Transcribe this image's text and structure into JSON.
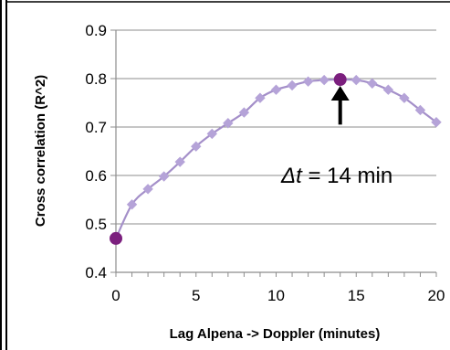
{
  "chart_data": {
    "type": "line",
    "xlabel": "Lag Alpena -> Doppler (minutes)",
    "ylabel": "Cross correlation (R^2)",
    "xlim": [
      0,
      20
    ],
    "ylim": [
      0.4,
      0.9
    ],
    "xticks": [
      0,
      5,
      10,
      15,
      20
    ],
    "yticks": [
      0.4,
      0.5,
      0.6,
      0.7,
      0.8,
      0.9
    ],
    "xtick_labels": [
      "0",
      "5",
      "10",
      "15",
      "20"
    ],
    "ytick_labels": [
      "0.4",
      "0.5",
      "0.6",
      "0.7",
      "0.8",
      "0.9"
    ],
    "grid": "horizontal",
    "colors": {
      "line": "#a48fc9",
      "marker": "#b5a3d8",
      "highlight": "#7b1f7e",
      "grid": "#8c8c8c",
      "axis": "#8c8c8c"
    },
    "series": [
      {
        "x": [
          0,
          1,
          2,
          3,
          4,
          5,
          6,
          7,
          8,
          9,
          10,
          11,
          12,
          13,
          14,
          15,
          16,
          17,
          18,
          19,
          20
        ],
        "y": [
          0.47,
          0.54,
          0.572,
          0.598,
          0.628,
          0.66,
          0.686,
          0.708,
          0.73,
          0.76,
          0.777,
          0.786,
          0.794,
          0.797,
          0.798,
          0.797,
          0.79,
          0.777,
          0.76,
          0.735,
          0.71
        ]
      }
    ],
    "highlight_points": [
      {
        "x": 0,
        "y": 0.47
      },
      {
        "x": 14,
        "y": 0.798
      }
    ],
    "annotation": {
      "symbol": "Δt",
      "rest": " = 14 min",
      "arrow_from": {
        "x": 14,
        "y": 0.705
      },
      "arrow_to": {
        "x": 14,
        "y": 0.785
      }
    }
  }
}
